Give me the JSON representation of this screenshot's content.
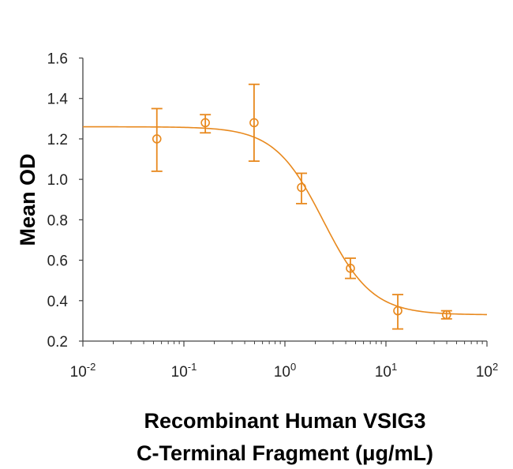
{
  "chart_data": {
    "type": "scatter",
    "title": "",
    "xlabel": [
      "Recombinant Human VSIG3",
      "C-Terminal Fragment (μg/mL)"
    ],
    "ylabel": "Mean OD",
    "xscale": "log",
    "xlim": [
      0.01,
      100
    ],
    "ylim": [
      0.2,
      1.6
    ],
    "grid": false,
    "legend": "none",
    "color": "#E8891E",
    "x_ticks": [
      {
        "base": "10",
        "exp": "-2"
      },
      {
        "base": "10",
        "exp": "-1"
      },
      {
        "base": "10",
        "exp": "0"
      },
      {
        "base": "10",
        "exp": "1"
      },
      {
        "base": "10",
        "exp": "2"
      }
    ],
    "y_ticks": [
      "0.2",
      "0.4",
      "0.6",
      "0.8",
      "1.0",
      "1.2",
      "1.4",
      "1.6"
    ],
    "series": [
      {
        "name": "Mean OD",
        "marker": "open-circle",
        "points": [
          {
            "x": 0.054,
            "y": 1.2,
            "err_low": 1.04,
            "err_high": 1.35
          },
          {
            "x": 0.163,
            "y": 1.28,
            "err_low": 1.23,
            "err_high": 1.32
          },
          {
            "x": 0.495,
            "y": 1.28,
            "err_low": 1.09,
            "err_high": 1.47
          },
          {
            "x": 1.46,
            "y": 0.96,
            "err_low": 0.88,
            "err_high": 1.03
          },
          {
            "x": 4.45,
            "y": 0.56,
            "err_low": 0.51,
            "err_high": 0.61
          },
          {
            "x": 13.1,
            "y": 0.35,
            "err_low": 0.26,
            "err_high": 0.43
          },
          {
            "x": 39.8,
            "y": 0.33,
            "err_low": 0.31,
            "err_high": 0.35
          }
        ]
      }
    ],
    "fit": {
      "name": "4PL fit",
      "model": "four-parameter logistic",
      "top": 1.26,
      "bottom": 0.33,
      "ec50": 2.4,
      "hill": 1.8
    }
  }
}
